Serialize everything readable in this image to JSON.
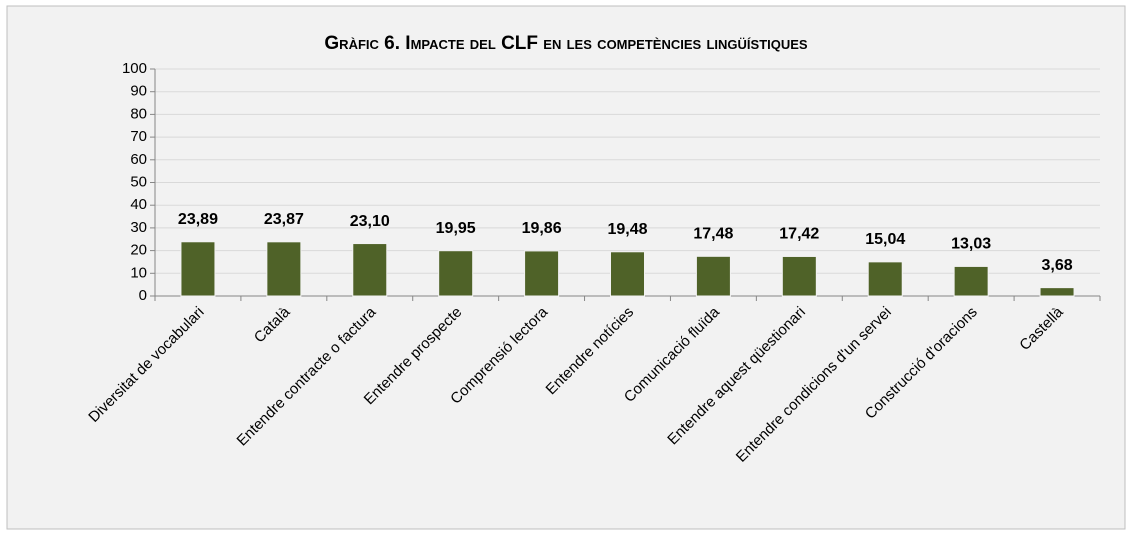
{
  "chart_data": {
    "type": "bar",
    "title": "Gràfic 6. Impacte del CLF en les competències lingüístiques",
    "categories": [
      "Diversitat de vocabulari",
      "Català",
      "Entendre contracte o factura",
      "Entendre prospecte",
      "Comprensió lectora",
      "Entendre notícies",
      "Comunicació fluïda",
      "Entendre aquest qüestionari",
      "Entendre condicions d'un servei",
      "Construcció d'oracions",
      "Castellà"
    ],
    "values": [
      23.89,
      23.87,
      23.1,
      19.95,
      19.86,
      19.48,
      17.48,
      17.42,
      15.04,
      13.03,
      3.68
    ],
    "value_labels": [
      "23,89",
      "23,87",
      "23,10",
      "19,95",
      "19,86",
      "19,48",
      "17,48",
      "17,42",
      "15,04",
      "13,03",
      "3,68"
    ],
    "color": "#4f6228",
    "ylim": [
      0,
      100
    ],
    "yticks": [
      0,
      10,
      20,
      30,
      40,
      50,
      60,
      70,
      80,
      90,
      100
    ],
    "grid": true
  }
}
